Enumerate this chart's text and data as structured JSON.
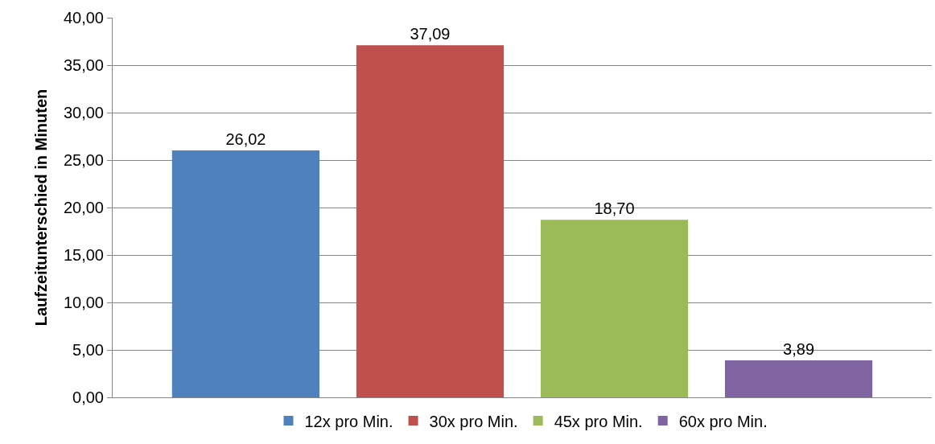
{
  "chart_data": {
    "type": "bar",
    "ylabel": "Laufzeitunterschied in Minuten",
    "categories": [
      null
    ],
    "series": [
      {
        "name": "12x pro Min.",
        "color": "#4f81bd",
        "values": [
          26.02
        ],
        "value_labels": [
          "26,02"
        ]
      },
      {
        "name": "30x pro Min.",
        "color": "#c0504d",
        "values": [
          37.09
        ],
        "value_labels": [
          "37,09"
        ]
      },
      {
        "name": "45x pro Min.",
        "color": "#9bbb59",
        "values": [
          18.7
        ],
        "value_labels": [
          "18,70"
        ]
      },
      {
        "name": "60x pro Min.",
        "color": "#8064a2",
        "values": [
          3.89
        ],
        "value_labels": [
          "3,89"
        ]
      }
    ],
    "ylim": [
      0,
      40
    ],
    "yticks": [
      {
        "value": 0,
        "label": "0,00"
      },
      {
        "value": 5,
        "label": "5,00"
      },
      {
        "value": 10,
        "label": "10,00"
      },
      {
        "value": 15,
        "label": "15,00"
      },
      {
        "value": 20,
        "label": "20,00"
      },
      {
        "value": 25,
        "label": "25,00"
      },
      {
        "value": 30,
        "label": "30,00"
      },
      {
        "value": 35,
        "label": "35,00"
      },
      {
        "value": 40,
        "label": "40,00"
      }
    ],
    "grid": "y",
    "legend": "bottom"
  }
}
